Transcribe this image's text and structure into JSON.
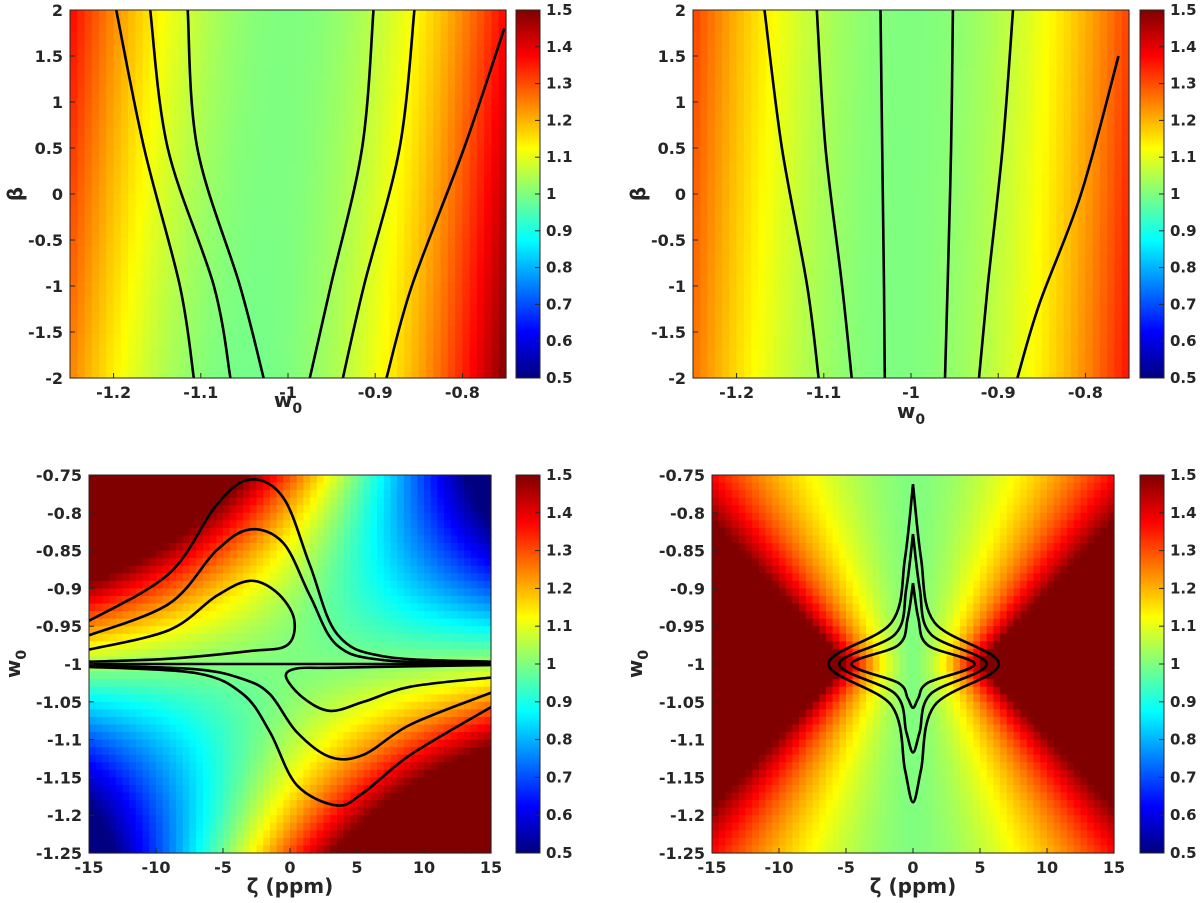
{
  "chart_data": [
    {
      "type": "heatmap",
      "xlabel": "w",
      "xlabel_sub": "0",
      "ylabel": "β",
      "ylabel_sub": "",
      "xlim": [
        -1.25,
        -0.75
      ],
      "ylim": [
        -2,
        2
      ],
      "xticks": [
        -1.2,
        -1.1,
        -1,
        -0.9,
        -0.8
      ],
      "xtick_labels": [
        "-1.2",
        "-1.1",
        "-1",
        "-0.9",
        "-0.8"
      ],
      "yticks": [
        2,
        1.5,
        1,
        0.5,
        0,
        -0.5,
        -1,
        -1.5,
        -2
      ],
      "ytick_labels": [
        "2",
        "1.5",
        "1",
        "0.5",
        "0",
        "-0.5",
        "-1",
        "-1.5",
        "-2"
      ],
      "colorbar": {
        "range": [
          0.5,
          1.5
        ],
        "ticks": [
          1.5,
          1.4,
          1.3,
          1.2,
          1.1,
          1,
          0.9,
          0.8,
          0.7,
          0.6,
          0.5
        ],
        "tick_labels": [
          "1.5",
          "1.4",
          "1.3",
          "1.2",
          "1.1",
          "1",
          "0.9",
          "0.8",
          "0.7",
          "0.6",
          "0.5"
        ],
        "colormap": "jet"
      },
      "field": {
        "kind": "wbeta",
        "a": 6.0,
        "g": 0.16,
        "c": 1.6
      },
      "contour_lines": [
        [
          [
            -1.197,
            2
          ],
          [
            -1.165,
            0.5
          ],
          [
            -1.124,
            -1
          ],
          [
            -1.108,
            -2
          ]
        ],
        [
          [
            -1.158,
            2
          ],
          [
            -1.138,
            0.5
          ],
          [
            -1.085,
            -1
          ],
          [
            -1.066,
            -2
          ]
        ],
        [
          [
            -1.115,
            2
          ],
          [
            -1.104,
            0.5
          ],
          [
            -1.055,
            -1
          ],
          [
            -1.028,
            -2
          ]
        ],
        [
          [
            -0.902,
            2
          ],
          [
            -0.915,
            0.5
          ],
          [
            -0.951,
            -1
          ],
          [
            -0.975,
            -2
          ]
        ],
        [
          [
            -0.855,
            2
          ],
          [
            -0.872,
            0.5
          ],
          [
            -0.913,
            -1
          ],
          [
            -0.937,
            -2
          ]
        ],
        [
          [
            -0.752,
            1.8
          ],
          [
            -0.798,
            0.5
          ],
          [
            -0.858,
            -1
          ],
          [
            -0.887,
            -2
          ]
        ]
      ]
    },
    {
      "type": "heatmap",
      "xlabel": "w",
      "xlabel_sub": "0",
      "ylabel": "β",
      "ylabel_sub": "",
      "xlim": [
        -1.25,
        -0.75
      ],
      "ylim": [
        -2,
        2
      ],
      "xticks": [
        -1.2,
        -1.1,
        -1,
        -0.9,
        -0.8
      ],
      "xtick_labels": [
        "-1.2",
        "-1.1",
        "-1",
        "-0.9",
        "-0.8"
      ],
      "yticks": [
        2,
        1.5,
        1,
        0.5,
        0,
        -0.5,
        -1,
        -1.5,
        -2
      ],
      "ytick_labels": [
        "2",
        "1.5",
        "1",
        "0.5",
        "0",
        "-0.5",
        "-1",
        "-1.5",
        "-2"
      ],
      "colorbar": {
        "range": [
          0.5,
          1.5
        ],
        "ticks": [
          1.5,
          1.4,
          1.3,
          1.2,
          1.1,
          1,
          0.9,
          0.8,
          0.7,
          0.6,
          0.5
        ],
        "tick_labels": [
          "1.5",
          "1.4",
          "1.3",
          "1.2",
          "1.1",
          "1",
          "0.9",
          "0.8",
          "0.7",
          "0.6",
          "0.5"
        ],
        "colormap": "jet"
      },
      "field": {
        "kind": "wbeta",
        "a": 5.0,
        "g": 0.1,
        "c": 1.0
      },
      "contour_lines": [
        [
          [
            -1.168,
            2
          ],
          [
            -1.148,
            0.5
          ],
          [
            -1.119,
            -1
          ],
          [
            -1.106,
            -2
          ]
        ],
        [
          [
            -1.108,
            2
          ],
          [
            -1.098,
            0.5
          ],
          [
            -1.079,
            -1
          ],
          [
            -1.068,
            -2
          ]
        ],
        [
          [
            -1.035,
            2
          ],
          [
            -1.033,
            0.5
          ],
          [
            -1.031,
            -1
          ],
          [
            -1.03,
            -2
          ]
        ],
        [
          [
            -0.952,
            2
          ],
          [
            -0.954,
            0.5
          ],
          [
            -0.958,
            -1
          ],
          [
            -0.961,
            -2
          ]
        ],
        [
          [
            -0.883,
            2
          ],
          [
            -0.895,
            0.5
          ],
          [
            -0.912,
            -1
          ],
          [
            -0.922,
            -2
          ]
        ],
        [
          [
            -0.762,
            1.5
          ],
          [
            -0.805,
            0.0
          ],
          [
            -0.853,
            -1.2
          ],
          [
            -0.878,
            -2
          ]
        ]
      ]
    },
    {
      "type": "heatmap",
      "xlabel": "ζ (ppm)",
      "xlabel_sub": "",
      "ylabel": "w",
      "ylabel_sub": "0",
      "xlim": [
        -15,
        15
      ],
      "ylim": [
        -1.25,
        -0.75
      ],
      "xticks": [
        -15,
        -10,
        -5,
        0,
        5,
        10,
        15
      ],
      "xtick_labels": [
        "-15",
        "-10",
        "-5",
        "0",
        "5",
        "10",
        "15"
      ],
      "yticks": [
        -0.75,
        -0.8,
        -0.85,
        -0.9,
        -0.95,
        -1,
        -1.05,
        -1.1,
        -1.15,
        -1.2,
        -1.25
      ],
      "ytick_labels": [
        "-0.75",
        "-0.8",
        "-0.85",
        "-0.9",
        "-0.95",
        "-1",
        "-1.05",
        "-1.1",
        "-1.15",
        "-1.2",
        "-1.25"
      ],
      "colorbar": {
        "range": [
          0.5,
          1.5
        ],
        "ticks": [
          1.5,
          1.4,
          1.3,
          1.2,
          1.1,
          1,
          0.9,
          0.8,
          0.7,
          0.6,
          0.5
        ],
        "tick_labels": [
          "1.5",
          "1.4",
          "1.3",
          "1.2",
          "1.1",
          "1",
          "0.9",
          "0.8",
          "0.7",
          "0.6",
          "0.5"
        ],
        "colormap": "jet"
      },
      "field": {
        "kind": "zetaw_saddle",
        "k": 4.2,
        "m": 6.0,
        "s": 0.04
      },
      "contour_lines": [
        [
          [
            -15,
            -0.943
          ],
          [
            -9,
            -0.88
          ],
          [
            -5.5,
            -0.79
          ],
          [
            -3,
            -0.756
          ],
          [
            -0.5,
            -0.78
          ],
          [
            1.5,
            -0.87
          ],
          [
            3.5,
            -0.96
          ],
          [
            7,
            -0.99
          ],
          [
            15,
            -0.997
          ]
        ],
        [
          [
            -15,
            -0.962
          ],
          [
            -9,
            -0.92
          ],
          [
            -5.5,
            -0.85
          ],
          [
            -3,
            -0.822
          ],
          [
            -0.5,
            -0.84
          ],
          [
            1.5,
            -0.91
          ],
          [
            3.5,
            -0.975
          ],
          [
            7,
            -0.995
          ],
          [
            15,
            -0.999
          ]
        ],
        [
          [
            -15,
            -0.981
          ],
          [
            -9,
            -0.955
          ],
          [
            -5.5,
            -0.91
          ],
          [
            -3,
            -0.89
          ],
          [
            -1,
            -0.905
          ],
          [
            0.3,
            -0.94
          ],
          [
            -0.2,
            -0.975
          ],
          [
            -3,
            -0.983
          ],
          [
            -9,
            -0.993
          ],
          [
            -15,
            -0.997
          ]
        ],
        [
          [
            -15,
            -1.0
          ],
          [
            -5,
            -1.0
          ],
          [
            0,
            -1.0
          ],
          [
            5,
            -1.0
          ],
          [
            15,
            -1.0
          ]
        ],
        [
          [
            15,
            -1.018
          ],
          [
            9,
            -1.03
          ],
          [
            5.5,
            -1.05
          ],
          [
            3,
            -1.062
          ],
          [
            1,
            -1.045
          ],
          [
            -0.3,
            -1.017
          ],
          [
            0.5,
            -1.006
          ],
          [
            3,
            -1.005
          ],
          [
            9,
            -1.003
          ],
          [
            15,
            -1.0015
          ]
        ],
        [
          [
            15,
            -1.038
          ],
          [
            9,
            -1.08
          ],
          [
            5.5,
            -1.12
          ],
          [
            3,
            -1.123
          ],
          [
            0.5,
            -1.09
          ],
          [
            -1.5,
            -1.04
          ],
          [
            -3.5,
            -1.02
          ],
          [
            -7,
            -1.007
          ],
          [
            -15,
            -1.002
          ]
        ],
        [
          [
            15,
            -1.057
          ],
          [
            9,
            -1.12
          ],
          [
            5.5,
            -1.17
          ],
          [
            3.5,
            -1.187
          ],
          [
            0.5,
            -1.16
          ],
          [
            -1.5,
            -1.09
          ],
          [
            -3.5,
            -1.04
          ],
          [
            -7,
            -1.012
          ],
          [
            -15,
            -1.004
          ]
        ]
      ]
    },
    {
      "type": "heatmap",
      "xlabel": "ζ (ppm)",
      "xlabel_sub": "",
      "ylabel": "w",
      "ylabel_sub": "0",
      "xlim": [
        -15,
        15
      ],
      "ylim": [
        -1.25,
        -0.75
      ],
      "xticks": [
        -15,
        -10,
        -5,
        0,
        5,
        10,
        15
      ],
      "xtick_labels": [
        "-15",
        "-10",
        "-5",
        "0",
        "5",
        "10",
        "15"
      ],
      "yticks": [
        -0.75,
        -0.8,
        -0.85,
        -0.9,
        -0.95,
        -1,
        -1.05,
        -1.1,
        -1.15,
        -1.2,
        -1.25
      ],
      "ytick_labels": [
        "-0.75",
        "-0.8",
        "-0.85",
        "-0.9",
        "-0.95",
        "-1",
        "-1.05",
        "-1.1",
        "-1.15",
        "-1.2",
        "-1.25"
      ],
      "colorbar": {
        "range": [
          0.5,
          1.5
        ],
        "ticks": [
          1.5,
          1.4,
          1.3,
          1.2,
          1.1,
          1,
          0.9,
          0.8,
          0.7,
          0.6,
          0.5
        ],
        "tick_labels": [
          "1.5",
          "1.4",
          "1.3",
          "1.2",
          "1.1",
          "1",
          "0.9",
          "0.8",
          "0.7",
          "0.6",
          "0.5"
        ],
        "colormap": "jet"
      },
      "field": {
        "kind": "zetaw_diamond",
        "p": 1.6,
        "q": 0.5
      },
      "contour_lines": [
        [
          [
            0,
            -0.762
          ],
          [
            0.6,
            -0.86
          ],
          [
            1.6,
            -0.945
          ],
          [
            6.4,
            -1.0
          ],
          [
            1.6,
            -1.055
          ],
          [
            0.6,
            -1.14
          ],
          [
            0,
            -1.183
          ],
          [
            -0.6,
            -1.14
          ],
          [
            -1.6,
            -1.055
          ],
          [
            -6.3,
            -1.0
          ],
          [
            -1.6,
            -0.945
          ],
          [
            -0.6,
            -0.86
          ],
          [
            0,
            -0.762
          ]
        ],
        [
          [
            0,
            -0.828
          ],
          [
            0.5,
            -0.9
          ],
          [
            1.3,
            -0.96
          ],
          [
            5.5,
            -1.0
          ],
          [
            1.3,
            -1.04
          ],
          [
            0.5,
            -1.09
          ],
          [
            0,
            -1.117
          ],
          [
            -0.5,
            -1.09
          ],
          [
            -1.3,
            -1.04
          ],
          [
            -5.5,
            -1.0
          ],
          [
            -1.3,
            -0.96
          ],
          [
            -0.5,
            -0.9
          ],
          [
            0,
            -0.828
          ]
        ],
        [
          [
            0,
            -0.893
          ],
          [
            0.4,
            -0.94
          ],
          [
            1.1,
            -0.975
          ],
          [
            4.6,
            -1.0
          ],
          [
            1.1,
            -1.025
          ],
          [
            0.4,
            -1.045
          ],
          [
            0,
            -1.058
          ],
          [
            -0.4,
            -1.045
          ],
          [
            -1.1,
            -1.025
          ],
          [
            -4.6,
            -1.0
          ],
          [
            -1.1,
            -0.975
          ],
          [
            -0.4,
            -0.94
          ],
          [
            0,
            -0.893
          ]
        ]
      ]
    }
  ]
}
